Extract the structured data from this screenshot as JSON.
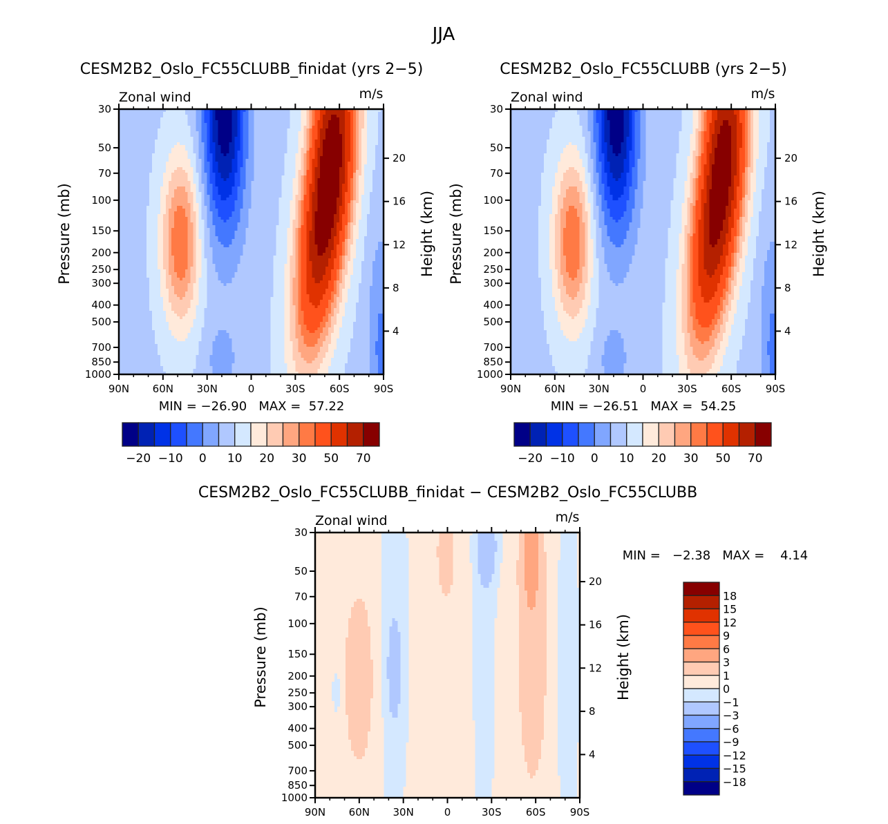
{
  "figure": {
    "title": "JJA"
  },
  "colormap": {
    "colors": [
      "#000087",
      "#0022b4",
      "#0032e6",
      "#1e50ff",
      "#4478ff",
      "#80a6ff",
      "#b0c8ff",
      "#d4e8ff",
      "#ffeadb",
      "#ffcbb3",
      "#ffa680",
      "#ff7a45",
      "#ff521c",
      "#e03200",
      "#b42000",
      "#870000"
    ]
  },
  "chart_data": [
    {
      "type": "heatmap",
      "title": "CESM2B2_Oslo_FC55CLUBB_finidat (yrs 2−5)",
      "left_label": "Zonal wind",
      "right_label": "m/s",
      "xlabel": "",
      "ylabel": "Pressure (mb)",
      "ylabel_right": "Height (km)",
      "x_ticks": [
        "90N",
        "60N",
        "30N",
        "0",
        "30S",
        "60S",
        "90S"
      ],
      "x_values": [
        90,
        60,
        30,
        0,
        -30,
        -60,
        -90
      ],
      "y_ticks": [
        "30",
        "50",
        "70",
        "100",
        "150",
        "200",
        "250",
        "300",
        "400",
        "500",
        "700",
        "850",
        "1000"
      ],
      "y_values": [
        30,
        50,
        70,
        100,
        150,
        200,
        250,
        300,
        400,
        500,
        700,
        850,
        1000
      ],
      "ylim": [
        1000,
        30
      ],
      "y_right_ticks": [
        "20",
        "16",
        "12",
        "8",
        "4"
      ],
      "y_right_values": [
        20,
        16,
        12,
        8,
        4
      ],
      "stats": "MIN = −26.90   MAX =  57.22",
      "min": -26.9,
      "max": 57.22,
      "colorbar": {
        "orientation": "horizontal",
        "levels": [
          -25,
          -20,
          -15,
          -10,
          -5,
          0,
          5,
          10,
          15,
          20,
          25,
          30,
          40,
          50,
          60,
          70
        ],
        "tick_labels": [
          "−20",
          "−10",
          "0",
          "10",
          "20",
          "30",
          "50",
          "70"
        ]
      },
      "features": [
        {
          "name": "southern jet core",
          "lat": -50,
          "pressure": 200,
          "approx_max": 57
        },
        {
          "name": "stratospheric easterlies",
          "lat": 20,
          "pressure": 30,
          "approx_min": -27
        },
        {
          "name": "northern westerly core",
          "lat": 45,
          "pressure": 200,
          "approx_value": 20
        }
      ]
    },
    {
      "type": "heatmap",
      "title": "CESM2B2_Oslo_FC55CLUBB (yrs 2−5)",
      "left_label": "Zonal wind",
      "right_label": "m/s",
      "xlabel": "",
      "ylabel": "Pressure (mb)",
      "ylabel_right": "Height (km)",
      "x_ticks": [
        "90N",
        "60N",
        "30N",
        "0",
        "30S",
        "60S",
        "90S"
      ],
      "x_values": [
        90,
        60,
        30,
        0,
        -30,
        -60,
        -90
      ],
      "y_ticks": [
        "30",
        "50",
        "70",
        "100",
        "150",
        "200",
        "250",
        "300",
        "400",
        "500",
        "700",
        "850",
        "1000"
      ],
      "y_values": [
        30,
        50,
        70,
        100,
        150,
        200,
        250,
        300,
        400,
        500,
        700,
        850,
        1000
      ],
      "ylim": [
        1000,
        30
      ],
      "y_right_ticks": [
        "20",
        "16",
        "12",
        "8",
        "4"
      ],
      "y_right_values": [
        20,
        16,
        12,
        8,
        4
      ],
      "stats": "MIN = −26.51   MAX =  54.25",
      "min": -26.51,
      "max": 54.25,
      "colorbar": {
        "orientation": "horizontal",
        "levels": [
          -25,
          -20,
          -15,
          -10,
          -5,
          0,
          5,
          10,
          15,
          20,
          25,
          30,
          40,
          50,
          60,
          70
        ],
        "tick_labels": [
          "−20",
          "−10",
          "0",
          "10",
          "20",
          "30",
          "50",
          "70"
        ]
      }
    },
    {
      "type": "heatmap",
      "title": "CESM2B2_Oslo_FC55CLUBB_finidat − CESM2B2_Oslo_FC55CLUBB",
      "left_label": "Zonal wind",
      "right_label": "m/s",
      "xlabel": "",
      "ylabel": "Pressure (mb)",
      "ylabel_right": "Height (km)",
      "x_ticks": [
        "90N",
        "60N",
        "30N",
        "0",
        "30S",
        "60S",
        "90S"
      ],
      "x_values": [
        90,
        60,
        30,
        0,
        -30,
        -60,
        -90
      ],
      "y_ticks": [
        "30",
        "50",
        "70",
        "100",
        "150",
        "200",
        "250",
        "300",
        "400",
        "500",
        "700",
        "850",
        "1000"
      ],
      "y_values": [
        30,
        50,
        70,
        100,
        150,
        200,
        250,
        300,
        400,
        500,
        700,
        850,
        1000
      ],
      "ylim": [
        1000,
        30
      ],
      "y_right_ticks": [
        "20",
        "16",
        "12",
        "8",
        "4"
      ],
      "y_right_values": [
        20,
        16,
        12,
        8,
        4
      ],
      "stats": "MIN =   −2.38   MAX =    4.14",
      "min": -2.38,
      "max": 4.14,
      "colorbar": {
        "orientation": "vertical",
        "levels": [
          -18,
          -15,
          -12,
          -9,
          -6,
          -3,
          -1,
          0,
          1,
          3,
          6,
          9,
          12,
          15,
          18
        ],
        "tick_labels": [
          "18",
          "15",
          "12",
          "9",
          "6",
          "3",
          "1",
          "0",
          "−1",
          "−3",
          "−6",
          "−9",
          "−12",
          "−15",
          "−18"
        ]
      }
    }
  ]
}
